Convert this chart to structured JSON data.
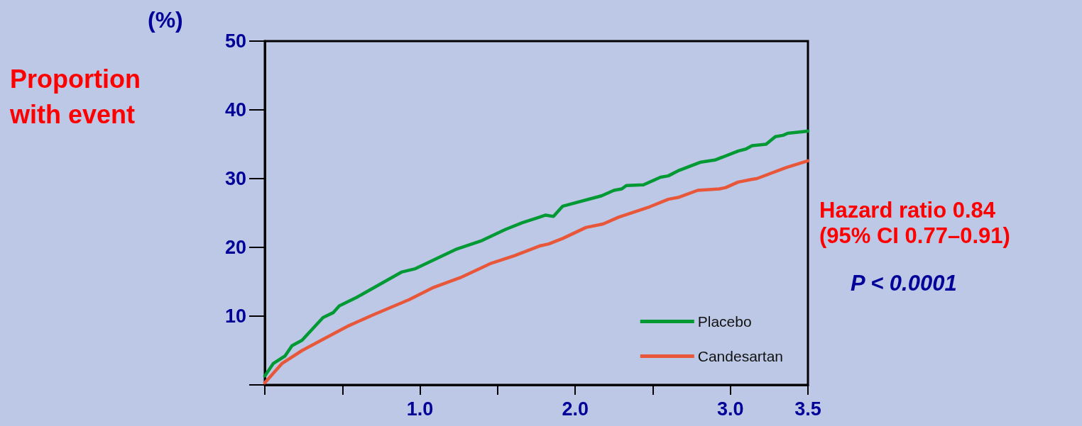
{
  "chart_data": {
    "type": "line",
    "ylabel": "Proportion with event",
    "annotations": [
      "(%)",
      "Hazard ratio 0.84 (95% CI 0.77–0.91)",
      "P < 0.0001"
    ],
    "xlim": [
      0,
      3.5
    ],
    "xticks": [
      {
        "value": 0,
        "label": null
      },
      {
        "value": 0.5,
        "label": null
      },
      {
        "value": 1,
        "label": "1.0"
      },
      {
        "value": 1.5,
        "label": null
      },
      {
        "value": 2,
        "label": "2.0"
      },
      {
        "value": 2.5,
        "label": null
      },
      {
        "value": 3,
        "label": "3.0"
      },
      {
        "value": 3.5,
        "label": "3.5"
      }
    ],
    "ylim": [
      0,
      50
    ],
    "yticks": [
      {
        "value": 0,
        "label": null
      },
      10,
      20,
      30,
      40,
      50
    ],
    "grid": false,
    "legend": "bottom right",
    "marker": "none",
    "line_style": "solid",
    "series": [
      {
        "name": "Placebo",
        "color": "#009933",
        "x": [
          0,
          0.054,
          0.13,
          0.175,
          0.24,
          0.375,
          0.44,
          0.48,
          0.59,
          0.88,
          0.97,
          1.23,
          1.4,
          1.55,
          1.66,
          1.77,
          1.81,
          1.86,
          1.92,
          2.17,
          2.25,
          2.3,
          2.33,
          2.44,
          2.55,
          2.6,
          2.67,
          2.81,
          2.9,
          3.05,
          3.1,
          3.14,
          3.23,
          3.29,
          3.34,
          3.37,
          3.5
        ],
        "values": [
          1.3,
          3.1,
          4.2,
          5.7,
          6.5,
          9.8,
          10.5,
          11.5,
          12.7,
          16.4,
          16.9,
          19.7,
          21.0,
          22.6,
          23.6,
          24.4,
          24.7,
          24.5,
          26.0,
          27.5,
          28.3,
          28.5,
          29.0,
          29.1,
          30.2,
          30.4,
          31.2,
          32.4,
          32.7,
          34.0,
          34.3,
          34.8,
          35.0,
          36.1,
          36.3,
          36.6,
          36.9
        ]
      },
      {
        "name": "Candesartan",
        "color": "#e8573a",
        "x": [
          0,
          0.11,
          0.24,
          0.39,
          0.54,
          0.7,
          0.93,
          1.08,
          1.26,
          1.46,
          1.61,
          1.77,
          1.83,
          1.92,
          2.07,
          2.18,
          2.28,
          2.48,
          2.6,
          2.67,
          2.79,
          2.93,
          2.97,
          3.05,
          3.14,
          3.17,
          3.36,
          3.5
        ],
        "values": [
          0.3,
          3.1,
          5.0,
          6.8,
          8.6,
          10.2,
          12.4,
          14.1,
          15.6,
          17.7,
          18.8,
          20.2,
          20.5,
          21.3,
          22.9,
          23.4,
          24.4,
          25.9,
          27.0,
          27.3,
          28.3,
          28.5,
          28.7,
          29.5,
          29.9,
          30.0,
          31.6,
          32.6
        ]
      }
    ]
  }
}
